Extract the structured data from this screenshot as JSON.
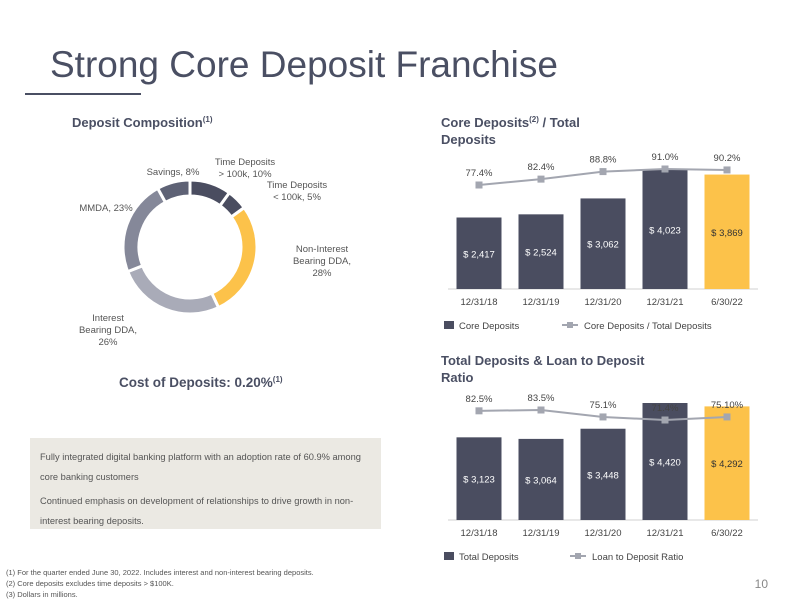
{
  "slide": {
    "title": "Strong Core Deposit Franchise",
    "page_number": "10"
  },
  "deposit_composition": {
    "title": "Deposit Composition",
    "title_sup": "(1)"
  },
  "cost_of_deposits": {
    "label": "Cost of Deposits: 0.20%",
    "sup": "(1)"
  },
  "core_deposits_chart": {
    "title_line1_a": "Core Deposits",
    "title_line1_sup": "(2)",
    "title_line1_b": " / Total",
    "title_line2": "Deposits"
  },
  "total_deposits_chart": {
    "title_line1": "Total Deposits & Loan to Deposit",
    "title_line2": "Ratio"
  },
  "callout": {
    "line1": "Fully integrated digital banking platform with an adoption rate of 60.9% among core banking customers",
    "line2": "Continued emphasis on development of relationships to drive growth in non-interest bearing deposits."
  },
  "footnotes": [
    "(1)  For the quarter ended June 30, 2022.  Includes interest and non-interest bearing deposits.",
    "(2)  Core deposits excludes time deposits > $100K.",
    "(3)  Dollars in millions."
  ],
  "colors": {
    "dark_slate": "#4a4d60",
    "highlight": "#fcc24a",
    "line_gray": "#a3a6b0",
    "title": "#4a4f63"
  },
  "chart_data": [
    {
      "type": "pie",
      "title": "Deposit Composition",
      "style": "donut",
      "slices": [
        {
          "label_lines": [
            "Time Deposits",
            "> 100k, 10%"
          ],
          "value": 10,
          "color": "#4a4d60"
        },
        {
          "label_lines": [
            "Time Deposits",
            "< 100k, 5%"
          ],
          "value": 5,
          "color": "#4a4d60"
        },
        {
          "label_lines": [
            "Non-Interest",
            "Bearing DDA,",
            "28%"
          ],
          "value": 28,
          "color": "#fcc24a"
        },
        {
          "label_lines": [
            "Interest",
            "Bearing DDA,",
            "26%"
          ],
          "value": 26,
          "color": "#a9abb8"
        },
        {
          "label_lines": [
            "MMDA, 23%"
          ],
          "value": 23,
          "color": "#858899"
        },
        {
          "label_lines": [
            "Savings, 8%"
          ],
          "value": 8,
          "color": "#5e6275"
        }
      ]
    },
    {
      "type": "bar",
      "title": "Core Deposits / Total Deposits",
      "categories": [
        "12/31/18",
        "12/31/19",
        "12/31/20",
        "12/31/21",
        "6/30/22"
      ],
      "series": [
        {
          "name": "Core Deposits",
          "kind": "bar",
          "values": [
            2417,
            2524,
            3062,
            4023,
            3869
          ],
          "labels": [
            "$ 2,417",
            "$ 2,524",
            "$ 3,062",
            "$ 4,023",
            "$ 3,869"
          ]
        },
        {
          "name": "Core Deposits / Total Deposits",
          "kind": "line",
          "values": [
            77.4,
            82.4,
            88.8,
            91.0,
            90.2
          ],
          "labels": [
            "77.4%",
            "82.4%",
            "88.8%",
            "91.0%",
            "90.2%"
          ]
        }
      ],
      "highlight_index": 4
    },
    {
      "type": "bar",
      "title": "Total Deposits & Loan to Deposit Ratio",
      "categories": [
        "12/31/18",
        "12/31/19",
        "12/31/20",
        "12/31/21",
        "6/30/22"
      ],
      "series": [
        {
          "name": "Total Deposits",
          "kind": "bar",
          "values": [
            3123,
            3064,
            3448,
            4420,
            4292
          ],
          "labels": [
            "$ 3,123",
            "$ 3,064",
            "$ 3,448",
            "$ 4,420",
            "$ 4,292"
          ]
        },
        {
          "name": "Loan to Deposit Ratio",
          "kind": "line",
          "values": [
            82.5,
            83.5,
            75.1,
            71.4,
            75.1
          ],
          "labels": [
            "82.5%",
            "83.5%",
            "75.1%",
            "71.4%",
            "75.10%"
          ]
        }
      ],
      "highlight_index": 4
    }
  ]
}
